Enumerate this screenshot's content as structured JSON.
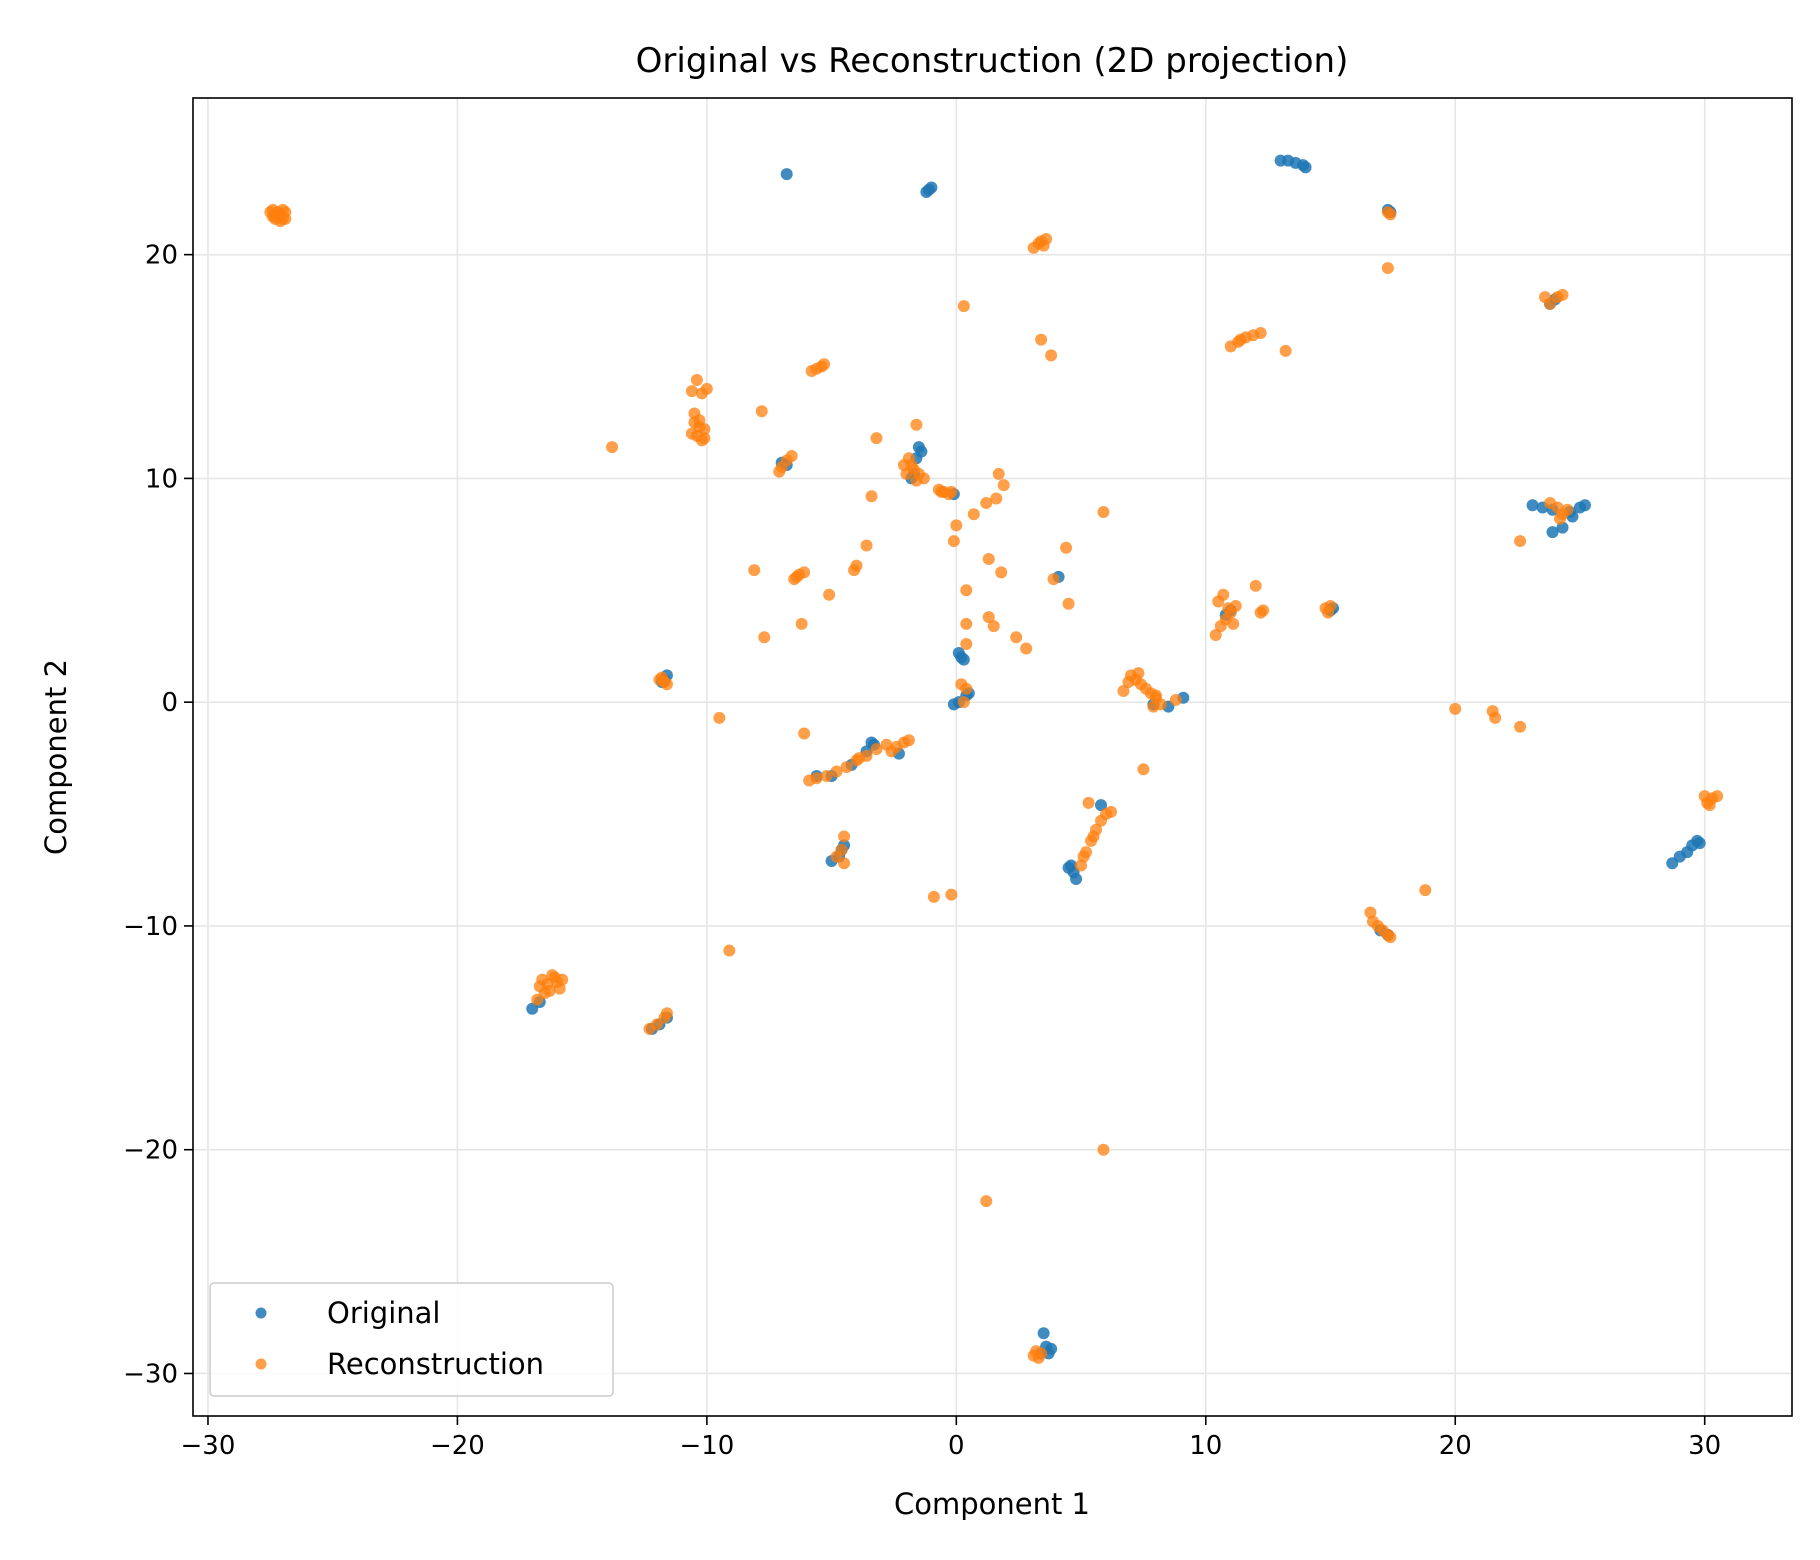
{
  "chart_data": {
    "type": "scatter",
    "title": "Original vs Reconstruction (2D projection)",
    "xlabel": "Component 1",
    "ylabel": "Component 2",
    "xlim": [
      -30.6,
      33.5
    ],
    "ylim": [
      -31.9,
      27.0
    ],
    "xticks": [
      -30,
      -20,
      -10,
      0,
      10,
      20,
      30
    ],
    "yticks": [
      -30,
      -20,
      -10,
      0,
      10,
      20
    ],
    "xtick_labels": [
      "−30",
      "−20",
      "−10",
      "0",
      "10",
      "20",
      "30"
    ],
    "ytick_labels": [
      "−30",
      "−20",
      "−10",
      "0",
      "10",
      "20"
    ],
    "grid": true,
    "legend_position": "lower-left",
    "series": [
      {
        "name": "Original",
        "color": "#1f77b4",
        "points": [
          [
            -6.8,
            23.6
          ],
          [
            -1.1,
            22.9
          ],
          [
            -1.0,
            23.0
          ],
          [
            -1.2,
            22.8
          ],
          [
            13.0,
            24.2
          ],
          [
            13.3,
            24.2
          ],
          [
            13.6,
            24.1
          ],
          [
            13.9,
            24.0
          ],
          [
            14.0,
            23.9
          ],
          [
            17.3,
            22.0
          ],
          [
            17.4,
            21.9
          ],
          [
            24.0,
            18.0
          ],
          [
            23.8,
            17.8
          ],
          [
            23.1,
            8.8
          ],
          [
            23.5,
            8.7
          ],
          [
            23.9,
            8.6
          ],
          [
            24.6,
            8.5
          ],
          [
            25.0,
            8.7
          ],
          [
            25.2,
            8.8
          ],
          [
            23.9,
            7.6
          ],
          [
            24.3,
            7.8
          ],
          [
            24.7,
            8.3
          ],
          [
            -7.0,
            10.7
          ],
          [
            -6.8,
            10.6
          ],
          [
            -1.5,
            11.4
          ],
          [
            -1.4,
            11.2
          ],
          [
            -1.6,
            10.9
          ],
          [
            -1.7,
            10.2
          ],
          [
            -1.8,
            10.0
          ],
          [
            -0.1,
            9.3
          ],
          [
            4.1,
            5.6
          ],
          [
            0.1,
            2.2
          ],
          [
            0.2,
            2.0
          ],
          [
            0.3,
            1.9
          ],
          [
            0.4,
            0.3
          ],
          [
            0.5,
            0.4
          ],
          [
            0.1,
            0.0
          ],
          [
            -0.1,
            -0.1
          ],
          [
            9.1,
            0.2
          ],
          [
            8.5,
            -0.2
          ],
          [
            7.9,
            -0.1
          ],
          [
            -11.6,
            1.2
          ],
          [
            -11.7,
            1.0
          ],
          [
            -11.8,
            0.9
          ],
          [
            -3.4,
            -1.8
          ],
          [
            -3.3,
            -1.9
          ],
          [
            -3.6,
            -2.2
          ],
          [
            -4.2,
            -2.8
          ],
          [
            -5.0,
            -3.3
          ],
          [
            -5.6,
            -3.3
          ],
          [
            -2.3,
            -2.3
          ],
          [
            -4.5,
            -6.4
          ],
          [
            -4.7,
            -6.9
          ],
          [
            -5.0,
            -7.1
          ],
          [
            -4.6,
            -6.6
          ],
          [
            4.6,
            -7.3
          ],
          [
            4.7,
            -7.6
          ],
          [
            4.8,
            -7.9
          ],
          [
            4.5,
            -7.4
          ],
          [
            5.8,
            -4.6
          ],
          [
            29.7,
            -6.2
          ],
          [
            29.5,
            -6.4
          ],
          [
            29.3,
            -6.7
          ],
          [
            29.0,
            -6.9
          ],
          [
            28.7,
            -7.2
          ],
          [
            29.8,
            -6.3
          ],
          [
            -17.0,
            -13.7
          ],
          [
            -16.7,
            -13.4
          ],
          [
            -12.2,
            -14.6
          ],
          [
            -11.9,
            -14.4
          ],
          [
            -11.6,
            -14.1
          ],
          [
            3.5,
            -28.2
          ],
          [
            3.6,
            -28.8
          ],
          [
            3.7,
            -29.1
          ],
          [
            3.4,
            -29.1
          ],
          [
            3.8,
            -28.9
          ],
          [
            10.8,
            3.9
          ],
          [
            11.0,
            4.1
          ],
          [
            15.0,
            4.1
          ],
          [
            15.1,
            4.2
          ],
          [
            17.0,
            -10.2
          ],
          [
            17.3,
            -10.4
          ]
        ]
      },
      {
        "name": "Reconstruction",
        "color": "#ff7f0e",
        "points": [
          [
            -27.5,
            21.9
          ],
          [
            -27.4,
            21.7
          ],
          [
            -27.3,
            21.6
          ],
          [
            -27.2,
            21.9
          ],
          [
            -27.1,
            21.8
          ],
          [
            -27.0,
            21.6
          ],
          [
            -26.9,
            21.9
          ],
          [
            -27.4,
            22.0
          ],
          [
            -27.1,
            21.5
          ],
          [
            -26.9,
            21.6
          ],
          [
            -27.3,
            21.8
          ],
          [
            -27.0,
            22.0
          ],
          [
            3.1,
            20.3
          ],
          [
            3.3,
            20.5
          ],
          [
            3.4,
            20.6
          ],
          [
            3.6,
            20.7
          ],
          [
            3.5,
            20.4
          ],
          [
            17.3,
            21.9
          ],
          [
            17.4,
            21.8
          ],
          [
            17.3,
            19.4
          ],
          [
            23.6,
            18.1
          ],
          [
            23.8,
            17.8
          ],
          [
            24.1,
            18.1
          ],
          [
            24.3,
            18.2
          ],
          [
            0.3,
            17.7
          ],
          [
            11.0,
            15.9
          ],
          [
            11.3,
            16.1
          ],
          [
            11.6,
            16.3
          ],
          [
            11.9,
            16.4
          ],
          [
            12.2,
            16.5
          ],
          [
            11.4,
            16.2
          ],
          [
            3.4,
            16.2
          ],
          [
            3.8,
            15.5
          ],
          [
            13.2,
            15.7
          ],
          [
            -5.8,
            14.8
          ],
          [
            -5.6,
            14.9
          ],
          [
            -5.4,
            15.0
          ],
          [
            -5.3,
            15.1
          ],
          [
            -10.6,
            13.9
          ],
          [
            -10.4,
            14.4
          ],
          [
            -10.2,
            13.8
          ],
          [
            -10.0,
            14.0
          ],
          [
            -10.5,
            12.5
          ],
          [
            -10.3,
            12.3
          ],
          [
            -10.1,
            12.2
          ],
          [
            -10.4,
            11.9
          ],
          [
            -10.2,
            11.7
          ],
          [
            -10.6,
            12.0
          ],
          [
            -10.3,
            12.6
          ],
          [
            -10.1,
            11.8
          ],
          [
            -10.5,
            12.9
          ],
          [
            -13.8,
            11.4
          ],
          [
            -7.8,
            13.0
          ],
          [
            -7.0,
            10.5
          ],
          [
            -6.8,
            10.8
          ],
          [
            -6.6,
            11.0
          ],
          [
            -7.1,
            10.3
          ],
          [
            -1.6,
            12.4
          ],
          [
            -3.2,
            11.8
          ],
          [
            -2.1,
            10.6
          ],
          [
            -1.9,
            10.9
          ],
          [
            -1.7,
            10.4
          ],
          [
            -1.5,
            10.2
          ],
          [
            -1.3,
            10.0
          ],
          [
            -2.0,
            10.2
          ],
          [
            -1.6,
            9.9
          ],
          [
            -1.8,
            10.6
          ],
          [
            -0.7,
            9.5
          ],
          [
            -0.5,
            9.4
          ],
          [
            -0.3,
            9.3
          ],
          [
            -0.2,
            9.4
          ],
          [
            -0.6,
            9.4
          ],
          [
            -3.4,
            9.2
          ],
          [
            1.7,
            10.2
          ],
          [
            1.9,
            9.7
          ],
          [
            1.2,
            8.9
          ],
          [
            1.6,
            9.1
          ],
          [
            0.7,
            8.4
          ],
          [
            5.9,
            8.5
          ],
          [
            0.0,
            7.9
          ],
          [
            -0.1,
            7.2
          ],
          [
            -3.6,
            7.0
          ],
          [
            -4.1,
            5.9
          ],
          [
            -4.0,
            6.1
          ],
          [
            -8.1,
            5.9
          ],
          [
            -6.5,
            5.5
          ],
          [
            -6.3,
            5.7
          ],
          [
            -6.1,
            5.8
          ],
          [
            -6.4,
            5.6
          ],
          [
            -5.1,
            4.8
          ],
          [
            -7.7,
            2.9
          ],
          [
            -6.2,
            3.5
          ],
          [
            1.3,
            6.4
          ],
          [
            1.8,
            5.8
          ],
          [
            3.9,
            5.5
          ],
          [
            4.4,
            6.9
          ],
          [
            4.5,
            4.4
          ],
          [
            0.4,
            5.0
          ],
          [
            0.4,
            3.5
          ],
          [
            0.4,
            2.6
          ],
          [
            1.3,
            3.8
          ],
          [
            1.5,
            3.4
          ],
          [
            2.4,
            2.9
          ],
          [
            2.8,
            2.4
          ],
          [
            10.4,
            3.0
          ],
          [
            10.6,
            3.4
          ],
          [
            10.8,
            3.7
          ],
          [
            11.0,
            4.0
          ],
          [
            11.2,
            4.3
          ],
          [
            10.5,
            4.5
          ],
          [
            10.7,
            4.8
          ],
          [
            11.1,
            3.5
          ],
          [
            10.9,
            4.2
          ],
          [
            12.0,
            5.2
          ],
          [
            12.3,
            4.1
          ],
          [
            12.2,
            4.0
          ],
          [
            14.8,
            4.2
          ],
          [
            15.0,
            4.3
          ],
          [
            14.9,
            4.0
          ],
          [
            -11.9,
            1.0
          ],
          [
            -11.7,
            0.9
          ],
          [
            -11.6,
            0.8
          ],
          [
            -11.8,
            1.1
          ],
          [
            0.2,
            0.8
          ],
          [
            0.4,
            0.6
          ],
          [
            0.3,
            0.0
          ],
          [
            6.7,
            0.5
          ],
          [
            7.0,
            1.2
          ],
          [
            7.2,
            1.0
          ],
          [
            7.4,
            0.8
          ],
          [
            7.6,
            0.6
          ],
          [
            7.8,
            0.4
          ],
          [
            8.0,
            0.2
          ],
          [
            7.9,
            -0.2
          ],
          [
            8.2,
            -0.1
          ],
          [
            6.9,
            0.9
          ],
          [
            7.3,
            1.3
          ],
          [
            8.0,
            0.3
          ],
          [
            8.8,
            0.1
          ],
          [
            -9.5,
            -0.7
          ],
          [
            -6.1,
            -1.4
          ],
          [
            -5.9,
            -3.5
          ],
          [
            -5.6,
            -3.4
          ],
          [
            -5.2,
            -3.3
          ],
          [
            -4.8,
            -3.1
          ],
          [
            -4.4,
            -2.9
          ],
          [
            -4.0,
            -2.6
          ],
          [
            -3.6,
            -2.4
          ],
          [
            -3.2,
            -2.1
          ],
          [
            -2.8,
            -1.9
          ],
          [
            -2.4,
            -2.0
          ],
          [
            -2.1,
            -1.8
          ],
          [
            -1.9,
            -1.7
          ],
          [
            -2.6,
            -2.2
          ],
          [
            -3.9,
            -2.5
          ],
          [
            7.5,
            -3.0
          ],
          [
            -4.5,
            -6.0
          ],
          [
            -4.6,
            -6.6
          ],
          [
            -4.8,
            -6.9
          ],
          [
            -4.5,
            -7.2
          ],
          [
            5.0,
            -7.3
          ],
          [
            5.2,
            -6.7
          ],
          [
            5.4,
            -6.2
          ],
          [
            5.6,
            -5.7
          ],
          [
            5.8,
            -5.3
          ],
          [
            6.0,
            -5.0
          ],
          [
            6.2,
            -4.9
          ],
          [
            5.3,
            -4.5
          ],
          [
            5.1,
            -6.9
          ],
          [
            5.5,
            -6.0
          ],
          [
            -0.9,
            -8.7
          ],
          [
            -0.2,
            -8.6
          ],
          [
            -9.1,
            -11.1
          ],
          [
            18.8,
            -8.4
          ],
          [
            16.6,
            -9.4
          ],
          [
            16.7,
            -9.8
          ],
          [
            16.9,
            -10.0
          ],
          [
            17.1,
            -10.2
          ],
          [
            17.3,
            -10.4
          ],
          [
            17.4,
            -10.5
          ],
          [
            20.0,
            -0.3
          ],
          [
            21.5,
            -0.4
          ],
          [
            21.6,
            -0.7
          ],
          [
            22.6,
            -1.1
          ],
          [
            22.6,
            7.2
          ],
          [
            23.8,
            8.9
          ],
          [
            24.1,
            8.7
          ],
          [
            24.3,
            8.4
          ],
          [
            24.5,
            8.6
          ],
          [
            24.2,
            8.2
          ],
          [
            30.1,
            -4.5
          ],
          [
            30.3,
            -4.3
          ],
          [
            30.5,
            -4.2
          ],
          [
            30.0,
            -4.2
          ],
          [
            30.2,
            -4.6
          ],
          [
            -16.6,
            -12.4
          ],
          [
            -16.4,
            -12.6
          ],
          [
            -16.2,
            -12.2
          ],
          [
            -16.0,
            -12.5
          ],
          [
            -15.9,
            -12.8
          ],
          [
            -16.5,
            -13.0
          ],
          [
            -16.8,
            -13.3
          ],
          [
            -16.1,
            -12.3
          ],
          [
            -16.3,
            -12.9
          ],
          [
            -15.8,
            -12.4
          ],
          [
            -16.7,
            -12.7
          ],
          [
            -12.3,
            -14.6
          ],
          [
            -12.0,
            -14.4
          ],
          [
            -11.7,
            -14.1
          ],
          [
            -11.6,
            -13.9
          ],
          [
            5.9,
            -20.0
          ],
          [
            1.2,
            -22.3
          ],
          [
            3.2,
            -29.0
          ],
          [
            3.3,
            -29.3
          ],
          [
            3.4,
            -29.1
          ],
          [
            3.1,
            -29.2
          ]
        ]
      }
    ]
  }
}
